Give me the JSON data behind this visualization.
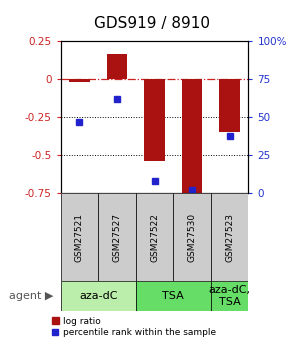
{
  "title": "GDS919 / 8910",
  "samples": [
    "GSM27521",
    "GSM27527",
    "GSM27522",
    "GSM27530",
    "GSM27523"
  ],
  "log_ratios": [
    -0.02,
    0.17,
    -0.54,
    -0.77,
    -0.35
  ],
  "percentile_ranks": [
    47,
    62,
    8,
    2,
    38
  ],
  "ylim_left": [
    -0.75,
    0.25
  ],
  "ylim_right": [
    0,
    100
  ],
  "yticks_left": [
    0.25,
    0,
    -0.25,
    -0.5,
    -0.75
  ],
  "yticks_right": [
    100,
    75,
    50,
    25,
    0
  ],
  "bar_color": "#aa1111",
  "dot_color": "#2222cc",
  "bar_width": 0.55,
  "groups": [
    {
      "label": "aza-dC",
      "start": 0,
      "end": 1,
      "color": "#bbeeaa"
    },
    {
      "label": "TSA",
      "start": 2,
      "end": 3,
      "color": "#66dd66"
    },
    {
      "label": "aza-dC,\nTSA",
      "start": 4,
      "end": 4,
      "color": "#66dd66"
    }
  ],
  "legend_bar_label": "log ratio",
  "legend_dot_label": "percentile rank within the sample",
  "title_fontsize": 11,
  "tick_fontsize": 7.5,
  "sample_fontsize": 6.5,
  "agent_fontsize": 8,
  "left_color": "#cc2222",
  "right_color": "#2233cc"
}
